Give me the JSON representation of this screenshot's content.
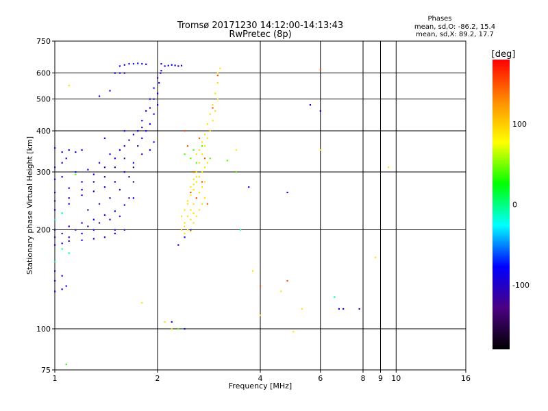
{
  "chart_data": {
    "type": "scatter",
    "title": "Tromsø 20171230 14:12:00-14:13:43",
    "subtitle": "RwPretec (8p)",
    "xlabel": "Frequency [MHz]",
    "ylabel": "Stationary phase Virtual Height [km]",
    "x_scale": "log",
    "y_scale": "log",
    "xlim": [
      1,
      16
    ],
    "ylim": [
      75,
      750
    ],
    "x_ticks": [
      1,
      2,
      4,
      6,
      8,
      9,
      10,
      16
    ],
    "x_tick_labels": [
      "1",
      "2",
      "4",
      "6",
      "8",
      "9",
      "10",
      "16"
    ],
    "y_ticks": [
      75,
      100,
      200,
      300,
      400,
      500,
      600,
      750
    ],
    "y_tick_labels": [
      "75",
      "100",
      "200",
      "300",
      "400",
      "500",
      "600",
      "750"
    ],
    "grid": true,
    "phase_stats": {
      "heading": "Phases",
      "line_o": "mean, sd,O: -86.2, 15.4",
      "line_x": "mean, sd,X: 89.2, 17.7"
    },
    "colorbar": {
      "label": "[deg]",
      "min": -180,
      "max": 180,
      "ticks": [
        100,
        0,
        -100
      ],
      "tick_labels": [
        "100",
        "0",
        "-100"
      ],
      "colors": [
        "#000000",
        "#4b0082",
        "#0000ff",
        "#00ffff",
        "#00ff00",
        "#ffff00",
        "#ff8c00",
        "#ff0000"
      ]
    },
    "series": [
      {
        "phase": -86,
        "points": [
          [
            1.0,
            180
          ],
          [
            1.05,
            182
          ],
          [
            1.1,
            185
          ],
          [
            1.2,
            186
          ],
          [
            1.3,
            188
          ],
          [
            1.4,
            190
          ],
          [
            1.5,
            195
          ],
          [
            1.6,
            200
          ],
          [
            1.0,
            200
          ],
          [
            1.1,
            205
          ],
          [
            1.2,
            210
          ],
          [
            1.3,
            215
          ],
          [
            1.4,
            222
          ],
          [
            1.5,
            228
          ],
          [
            1.6,
            238
          ],
          [
            1.7,
            250
          ],
          [
            1.0,
            230
          ],
          [
            1.1,
            240
          ],
          [
            1.2,
            255
          ],
          [
            1.3,
            262
          ],
          [
            1.4,
            270
          ],
          [
            1.5,
            280
          ],
          [
            1.6,
            300
          ],
          [
            1.7,
            320
          ],
          [
            1.0,
            260
          ],
          [
            1.1,
            268
          ],
          [
            1.2,
            280
          ],
          [
            1.3,
            295
          ],
          [
            1.4,
            310
          ],
          [
            1.5,
            330
          ],
          [
            1.6,
            360
          ],
          [
            1.7,
            390
          ],
          [
            1.0,
            285
          ],
          [
            1.05,
            290
          ],
          [
            1.15,
            300
          ],
          [
            1.25,
            305
          ],
          [
            1.35,
            320
          ],
          [
            1.45,
            340
          ],
          [
            1.55,
            350
          ],
          [
            1.65,
            375
          ],
          [
            1.0,
            355
          ],
          [
            1.05,
            345
          ],
          [
            1.1,
            350
          ],
          [
            1.15,
            345
          ],
          [
            1.2,
            350
          ],
          [
            1.0,
            310
          ],
          [
            1.05,
            320
          ],
          [
            1.08,
            330
          ],
          [
            1.0,
            140
          ],
          [
            1.0,
            130
          ],
          [
            1.05,
            132
          ],
          [
            1.08,
            135
          ],
          [
            1.0,
            150
          ],
          [
            1.05,
            145
          ],
          [
            1.75,
            400
          ],
          [
            1.8,
            430
          ],
          [
            1.85,
            460
          ],
          [
            1.9,
            500
          ],
          [
            1.95,
            540
          ],
          [
            1.8,
            380
          ],
          [
            1.85,
            400
          ],
          [
            1.9,
            420
          ],
          [
            1.95,
            450
          ],
          [
            2.0,
            480
          ],
          [
            2.0,
            520
          ],
          [
            2.02,
            560
          ],
          [
            2.04,
            600
          ],
          [
            2.05,
            640
          ],
          [
            1.9,
            350
          ],
          [
            1.95,
            370
          ],
          [
            1.55,
            630
          ],
          [
            1.6,
            635
          ],
          [
            1.65,
            640
          ],
          [
            1.7,
            640
          ],
          [
            1.75,
            642
          ],
          [
            1.8,
            640
          ],
          [
            1.85,
            638
          ],
          [
            1.5,
            600
          ],
          [
            1.55,
            600
          ],
          [
            1.6,
            600
          ],
          [
            2.1,
            630
          ],
          [
            2.15,
            632
          ],
          [
            2.2,
            635
          ],
          [
            2.25,
            633
          ],
          [
            2.3,
            630
          ],
          [
            2.35,
            632
          ],
          [
            1.35,
            510
          ],
          [
            1.45,
            530
          ],
          [
            1.4,
            380
          ],
          [
            1.6,
            400
          ],
          [
            1.5,
            200
          ],
          [
            1.3,
            200
          ],
          [
            1.2,
            195
          ],
          [
            1.1,
            190
          ],
          [
            2.4,
            190
          ],
          [
            2.5,
            200
          ],
          [
            2.3,
            180
          ],
          [
            2.2,
            105
          ],
          [
            2.4,
            100
          ],
          [
            4.8,
            260
          ],
          [
            3.7,
            270
          ],
          [
            5.6,
            480
          ],
          [
            6.0,
            460
          ],
          [
            6.8,
            115
          ],
          [
            7.0,
            115
          ],
          [
            7.8,
            115
          ]
        ]
      },
      {
        "phase": 90,
        "points": [
          [
            2.4,
            195
          ],
          [
            2.45,
            200
          ],
          [
            2.5,
            198
          ],
          [
            2.55,
            210
          ],
          [
            2.6,
            220
          ],
          [
            2.65,
            230
          ],
          [
            2.7,
            240
          ],
          [
            2.75,
            250
          ],
          [
            2.4,
            210
          ],
          [
            2.45,
            220
          ],
          [
            2.5,
            230
          ],
          [
            2.55,
            240
          ],
          [
            2.6,
            250
          ],
          [
            2.65,
            260
          ],
          [
            2.7,
            270
          ],
          [
            2.75,
            280
          ],
          [
            2.45,
            240
          ],
          [
            2.5,
            255
          ],
          [
            2.55,
            265
          ],
          [
            2.6,
            280
          ],
          [
            2.65,
            290
          ],
          [
            2.7,
            300
          ],
          [
            2.75,
            310
          ],
          [
            2.8,
            320
          ],
          [
            2.5,
            270
          ],
          [
            2.55,
            285
          ],
          [
            2.6,
            300
          ],
          [
            2.65,
            320
          ],
          [
            2.7,
            340
          ],
          [
            2.75,
            360
          ],
          [
            2.8,
            380
          ],
          [
            2.85,
            400
          ],
          [
            2.6,
            340
          ],
          [
            2.65,
            350
          ],
          [
            2.7,
            370
          ],
          [
            2.75,
            390
          ],
          [
            2.8,
            420
          ],
          [
            2.85,
            450
          ],
          [
            2.9,
            480
          ],
          [
            2.95,
            520
          ],
          [
            2.9,
            430
          ],
          [
            2.95,
            460
          ],
          [
            3.0,
            500
          ],
          [
            3.0,
            560
          ],
          [
            3.0,
            600
          ],
          [
            3.05,
            620
          ],
          [
            2.35,
            220
          ],
          [
            2.4,
            230
          ],
          [
            2.45,
            245
          ],
          [
            2.5,
            260
          ],
          [
            2.55,
            275
          ],
          [
            2.6,
            290
          ],
          [
            2.35,
            200
          ],
          [
            2.4,
            205
          ],
          [
            2.5,
            215
          ],
          [
            2.55,
            225
          ],
          [
            1.1,
            550
          ],
          [
            1.8,
            120
          ],
          [
            2.1,
            105
          ],
          [
            2.2,
            100
          ],
          [
            3.4,
            350
          ],
          [
            3.8,
            150
          ],
          [
            4.0,
            110
          ],
          [
            4.6,
            130
          ],
          [
            5.0,
            98
          ],
          [
            5.3,
            115
          ],
          [
            6.0,
            350
          ],
          [
            8.7,
            165
          ],
          [
            9.5,
            310
          ]
        ]
      },
      {
        "phase": 150,
        "points": [
          [
            2.5,
            260
          ],
          [
            2.6,
            250
          ],
          [
            2.7,
            280
          ],
          [
            2.75,
            330
          ],
          [
            2.8,
            240
          ],
          [
            2.55,
            300
          ],
          [
            2.65,
            380
          ],
          [
            2.45,
            360
          ],
          [
            2.4,
            400
          ],
          [
            4.0,
            135
          ],
          [
            4.8,
            140
          ],
          [
            6.0,
            615
          ],
          [
            3.0,
            590
          ],
          [
            2.9,
            470
          ]
        ]
      },
      {
        "phase": -120,
        "points": [
          [
            1.0,
            190
          ],
          [
            1.05,
            195
          ],
          [
            1.15,
            200
          ],
          [
            1.25,
            205
          ],
          [
            1.35,
            210
          ],
          [
            1.45,
            215
          ],
          [
            1.55,
            220
          ],
          [
            1.0,
            245
          ],
          [
            1.1,
            250
          ],
          [
            1.2,
            265
          ],
          [
            1.3,
            280
          ],
          [
            1.4,
            290
          ],
          [
            1.5,
            310
          ],
          [
            1.6,
            330
          ],
          [
            1.75,
            360
          ],
          [
            1.8,
            410
          ],
          [
            1.9,
            470
          ],
          [
            1.95,
            500
          ],
          [
            2.0,
            580
          ],
          [
            2.05,
            610
          ],
          [
            1.65,
            250
          ],
          [
            1.7,
            280
          ],
          [
            1.25,
            230
          ],
          [
            1.35,
            240
          ],
          [
            1.45,
            250
          ],
          [
            1.55,
            265
          ],
          [
            1.65,
            290
          ],
          [
            1.7,
            310
          ],
          [
            1.8,
            340
          ]
        ]
      },
      {
        "phase": -10,
        "points": [
          [
            1.0,
            160
          ],
          [
            1.05,
            175
          ],
          [
            1.1,
            170
          ],
          [
            1.0,
            215
          ],
          [
            1.05,
            225
          ],
          [
            3.5,
            200
          ],
          [
            6.6,
            125
          ],
          [
            1.08,
            78
          ]
        ]
      },
      {
        "phase": 40,
        "points": [
          [
            1.15,
            295
          ],
          [
            2.4,
            340
          ],
          [
            2.5,
            330
          ],
          [
            2.6,
            320
          ],
          [
            2.55,
            350
          ],
          [
            2.7,
            360
          ],
          [
            2.85,
            330
          ],
          [
            3.2,
            325
          ],
          [
            2.3,
            100
          ],
          [
            1.08,
            78
          ],
          [
            3.4,
            300
          ]
        ]
      }
    ]
  }
}
